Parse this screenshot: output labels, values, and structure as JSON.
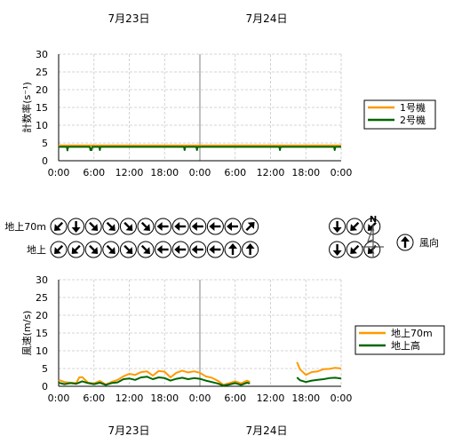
{
  "dates": [
    "7月23日",
    "7月24日"
  ],
  "colors": {
    "orange": "#ff9900",
    "green": "#006600",
    "grid": "#c8c8c8",
    "divider": "#808080"
  },
  "chart_data": [
    {
      "type": "line",
      "ylabel": "計数率(s⁻¹)",
      "ylim": [
        0,
        30
      ],
      "yticks": [
        "0",
        "5",
        "10",
        "15",
        "20",
        "25",
        "30"
      ],
      "xticks": [
        "0:00",
        "6:00",
        "12:00",
        "18:00",
        "0:00",
        "6:00",
        "12:00",
        "18:00",
        "0:00"
      ],
      "xlim_hours": [
        0,
        48
      ],
      "grid": true,
      "legend_position": "right",
      "series": [
        {
          "name": "1号機",
          "color": "#ff9900",
          "points": [
            [
              0,
              4.3
            ],
            [
              24,
              4.3
            ],
            [
              48,
              4.3
            ]
          ]
        },
        {
          "name": "2号機",
          "color": "#006600",
          "points": [
            [
              0,
              3.9
            ],
            [
              1.4,
              3.9
            ],
            [
              1.5,
              2.9
            ],
            [
              1.6,
              3.9
            ],
            [
              5.3,
              3.9
            ],
            [
              5.4,
              3.0
            ],
            [
              5.6,
              3.0
            ],
            [
              5.7,
              3.9
            ],
            [
              6.9,
              3.9
            ],
            [
              7.0,
              3.0
            ],
            [
              7.1,
              3.9
            ],
            [
              21.3,
              3.9
            ],
            [
              21.4,
              3.0
            ],
            [
              21.5,
              3.9
            ],
            [
              23.4,
              3.9
            ],
            [
              23.5,
              3.0
            ],
            [
              23.6,
              3.9
            ],
            [
              37.5,
              3.9
            ],
            [
              37.6,
              3.0
            ],
            [
              37.7,
              3.9
            ],
            [
              46.8,
              3.9
            ],
            [
              46.9,
              3.0
            ],
            [
              47.0,
              3.9
            ],
            [
              48,
              3.9
            ]
          ]
        }
      ]
    },
    {
      "type": "line",
      "ylabel": "風速(m/s)",
      "ylim": [
        0,
        30
      ],
      "yticks": [
        "0",
        "5",
        "10",
        "15",
        "20",
        "25",
        "30"
      ],
      "xticks": [
        "0:00",
        "6:00",
        "12:00",
        "18:00",
        "0:00",
        "6:00",
        "12:00",
        "18:00",
        "0:00"
      ],
      "xlim_hours": [
        0,
        48
      ],
      "grid": true,
      "legend_position": "right",
      "series": [
        {
          "name": "地上70m",
          "color": "#ff9900",
          "segments": [
            [
              [
                0,
                1.8
              ],
              [
                1,
                1.2
              ],
              [
                2,
                1.0
              ],
              [
                3,
                0.9
              ],
              [
                3.5,
                2.5
              ],
              [
                4,
                2.6
              ],
              [
                5,
                1.0
              ],
              [
                6,
                0.8
              ],
              [
                7,
                1.5
              ],
              [
                8,
                0.5
              ],
              [
                9,
                1.2
              ],
              [
                10,
                1.8
              ],
              [
                11,
                2.8
              ],
              [
                12,
                3.5
              ],
              [
                13,
                3.2
              ],
              [
                14,
                4.0
              ],
              [
                15,
                4.2
              ],
              [
                16,
                3.0
              ],
              [
                17,
                4.3
              ],
              [
                18,
                4.1
              ],
              [
                19,
                2.5
              ],
              [
                20,
                3.8
              ],
              [
                21,
                4.4
              ],
              [
                22,
                3.9
              ],
              [
                23,
                4.2
              ],
              [
                24,
                3.8
              ],
              [
                25,
                2.8
              ],
              [
                26,
                2.4
              ],
              [
                27,
                1.6
              ],
              [
                28,
                0.4
              ],
              [
                29,
                0.9
              ],
              [
                30,
                1.4
              ],
              [
                31,
                0.8
              ],
              [
                32,
                1.6
              ],
              [
                32.5,
                1.2
              ]
            ],
            [
              [
                40.5,
                6.8
              ],
              [
                41,
                4.8
              ],
              [
                42,
                3.2
              ],
              [
                43,
                4.0
              ],
              [
                44,
                4.2
              ],
              [
                45,
                4.8
              ],
              [
                46,
                4.9
              ],
              [
                47,
                5.2
              ],
              [
                48,
                5.0
              ]
            ]
          ]
        },
        {
          "name": "地上高",
          "color": "#006600",
          "segments": [
            [
              [
                0,
                1.0
              ],
              [
                1,
                0.6
              ],
              [
                2,
                0.9
              ],
              [
                3,
                0.7
              ],
              [
                4,
                1.4
              ],
              [
                5,
                0.9
              ],
              [
                6,
                0.6
              ],
              [
                7,
                1.0
              ],
              [
                8,
                0.4
              ],
              [
                9,
                0.9
              ],
              [
                10,
                1.1
              ],
              [
                11,
                2.0
              ],
              [
                12,
                2.2
              ],
              [
                13,
                1.8
              ],
              [
                14,
                2.5
              ],
              [
                15,
                2.7
              ],
              [
                16,
                2.0
              ],
              [
                17,
                2.5
              ],
              [
                18,
                2.3
              ],
              [
                19,
                1.6
              ],
              [
                20,
                2.1
              ],
              [
                21,
                2.4
              ],
              [
                22,
                2.0
              ],
              [
                23,
                2.3
              ],
              [
                24,
                2.1
              ],
              [
                25,
                1.6
              ],
              [
                26,
                1.2
              ],
              [
                27,
                0.8
              ],
              [
                28,
                0.2
              ],
              [
                29,
                0.5
              ],
              [
                30,
                0.9
              ],
              [
                31,
                0.4
              ],
              [
                32,
                1.0
              ],
              [
                32.5,
                0.8
              ]
            ],
            [
              [
                40.5,
                2.5
              ],
              [
                41,
                1.7
              ],
              [
                42,
                1.2
              ],
              [
                43,
                1.6
              ],
              [
                44,
                1.8
              ],
              [
                45,
                2.0
              ],
              [
                46,
                2.3
              ],
              [
                47,
                2.4
              ],
              [
                48,
                2.2
              ]
            ]
          ]
        }
      ]
    }
  ],
  "wind_direction": {
    "rows": [
      {
        "label": "地上70m",
        "arrows": [
          225,
          180,
          135,
          135,
          135,
          135,
          270,
          270,
          270,
          270,
          270,
          45,
          null,
          null,
          null,
          null,
          180,
          225,
          225
        ]
      },
      {
        "label": "地上",
        "arrows": [
          225,
          225,
          135,
          135,
          135,
          135,
          270,
          270,
          270,
          270,
          0,
          0,
          null,
          null,
          null,
          null,
          180,
          225,
          225
        ]
      }
    ],
    "north_label": "N",
    "legend_label": "風向",
    "legend_arrow_deg": 0
  }
}
